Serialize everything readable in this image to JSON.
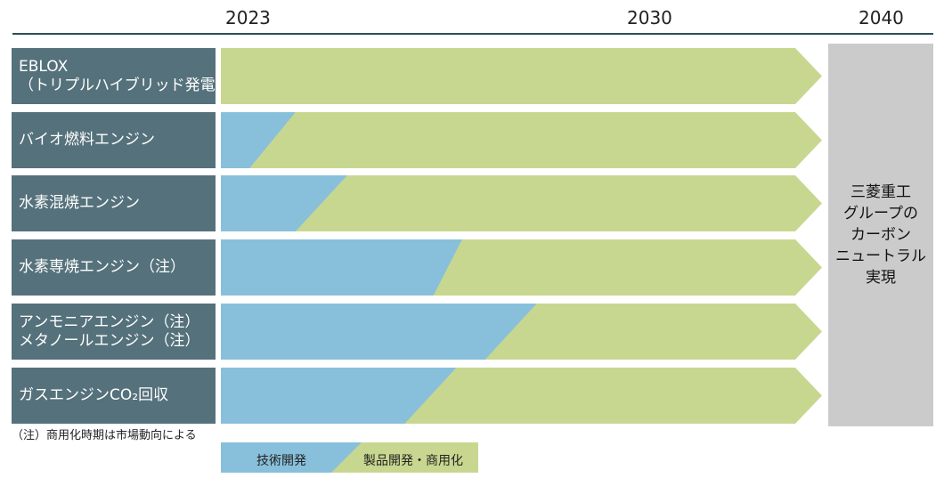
{
  "years": [
    "2023",
    "2030",
    "2040"
  ],
  "rows": [
    {
      "lines": [
        "EBLOX",
        "（トリプルハイブリッド発電）"
      ],
      "tech_dev_start_fraction": 0.0,
      "tech_dev_end_fraction": 0.0
    },
    {
      "lines": [
        "バイオ燃料エンジン"
      ],
      "tech_dev_start_fraction": 0.05,
      "tech_dev_end_fraction": 0.13
    },
    {
      "lines": [
        "水素混焼エンジン"
      ],
      "tech_dev_start_fraction": 0.13,
      "tech_dev_end_fraction": 0.22
    },
    {
      "lines": [
        "水素専焼エンジン（注）"
      ],
      "tech_dev_start_fraction": 0.37,
      "tech_dev_end_fraction": 0.42
    },
    {
      "lines": [
        "アンモニアエンジン（注）",
        "メタノールエンジン（注）"
      ],
      "tech_dev_start_fraction": 0.46,
      "tech_dev_end_fraction": 0.55
    },
    {
      "lines": [
        "ガスエンジンCO₂回収"
      ],
      "tech_dev_start_fraction": 0.32,
      "tech_dev_end_fraction": 0.41
    }
  ],
  "goal": {
    "lines": [
      "三菱重工",
      "グループの",
      "カーボン",
      "ニュートラル",
      "実現"
    ]
  },
  "note": "（注）商用化時期は市場動向による",
  "legend": {
    "tech_dev": "技術開発",
    "product_dev": "製品開発・商用化"
  },
  "colors": {
    "tech_dev": "#88c0db",
    "product_dev": "#c8d790",
    "label_bg": "#55717b",
    "goal_bg": "#cbcbcb"
  }
}
